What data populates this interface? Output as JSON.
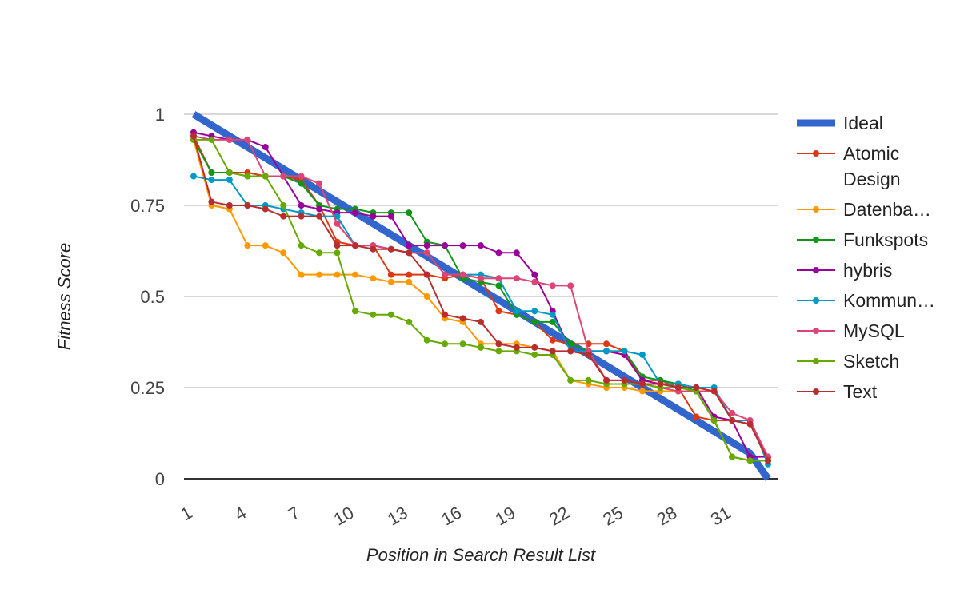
{
  "chart_data": {
    "type": "line",
    "title": "",
    "xlabel": "Position in Search Result List",
    "ylabel": "Fitness Score",
    "x": [
      1,
      2,
      3,
      4,
      5,
      6,
      7,
      8,
      9,
      10,
      11,
      12,
      13,
      14,
      15,
      16,
      17,
      18,
      19,
      20,
      21,
      22,
      23,
      24,
      25,
      26,
      27,
      28,
      29,
      30,
      31,
      32,
      33
    ],
    "xticks": [
      1,
      4,
      7,
      10,
      13,
      16,
      19,
      22,
      25,
      28,
      31
    ],
    "xlim": [
      0.5,
      33.5
    ],
    "ylim": [
      0,
      1
    ],
    "yticks": [
      0,
      0.25,
      0.5,
      0.75,
      1
    ],
    "ytick_labels": [
      "0",
      "0.25",
      "0.5",
      "0.75",
      "1"
    ],
    "grid": true,
    "legend": "right",
    "series": [
      {
        "name": "Ideal",
        "color": "#3366cc",
        "style": "thick-line",
        "values": [
          1,
          0.97,
          0.94,
          0.91,
          0.88,
          0.85,
          0.82,
          0.79,
          0.76,
          0.73,
          0.7,
          0.67,
          0.64,
          0.61,
          0.58,
          0.55,
          0.52,
          0.49,
          0.46,
          0.43,
          0.4,
          0.37,
          0.34,
          0.31,
          0.28,
          0.25,
          0.22,
          0.19,
          0.16,
          0.13,
          0.1,
          0.07,
          0
        ]
      },
      {
        "name": "Atomic Design",
        "legend_lines": [
          "Atomic",
          "Design"
        ],
        "color": "#dc3912",
        "values": [
          0.94,
          0.84,
          0.84,
          0.84,
          0.83,
          0.83,
          0.82,
          0.75,
          0.65,
          0.64,
          0.64,
          0.56,
          0.56,
          0.56,
          0.55,
          0.56,
          0.55,
          0.46,
          0.45,
          0.43,
          0.38,
          0.37,
          0.37,
          0.37,
          0.35,
          0.27,
          0.27,
          0.25,
          0.17,
          0.16,
          0.16,
          0.15,
          0.06
        ]
      },
      {
        "name": "Datenba…",
        "color": "#ff9900",
        "values": [
          0.93,
          0.75,
          0.74,
          0.64,
          0.64,
          0.62,
          0.56,
          0.56,
          0.56,
          0.56,
          0.55,
          0.54,
          0.54,
          0.5,
          0.44,
          0.43,
          0.37,
          0.37,
          0.37,
          0.36,
          0.35,
          0.27,
          0.26,
          0.25,
          0.25,
          0.24,
          0.24,
          0.24,
          0.24,
          0.16,
          0.06,
          0.05,
          0.05
        ]
      },
      {
        "name": "Funkspots",
        "color": "#109618",
        "values": [
          0.93,
          0.84,
          0.84,
          0.83,
          0.83,
          0.83,
          0.81,
          0.75,
          0.74,
          0.74,
          0.73,
          0.73,
          0.73,
          0.65,
          0.64,
          0.55,
          0.54,
          0.53,
          0.45,
          0.43,
          0.43,
          0.37,
          0.35,
          0.35,
          0.35,
          0.28,
          0.27,
          0.26,
          0.24,
          0.16,
          0.06,
          0.05,
          0.05
        ]
      },
      {
        "name": "hybris",
        "color": "#990099",
        "values": [
          0.95,
          0.94,
          0.93,
          0.93,
          0.91,
          0.83,
          0.75,
          0.74,
          0.73,
          0.73,
          0.72,
          0.72,
          0.64,
          0.64,
          0.64,
          0.64,
          0.64,
          0.62,
          0.62,
          0.56,
          0.46,
          0.35,
          0.35,
          0.35,
          0.34,
          0.27,
          0.26,
          0.25,
          0.25,
          0.17,
          0.16,
          0.06,
          0.06
        ]
      },
      {
        "name": "Kommun…",
        "color": "#0099c6",
        "values": [
          0.83,
          0.82,
          0.82,
          0.75,
          0.75,
          0.74,
          0.73,
          0.72,
          0.72,
          0.64,
          0.64,
          0.63,
          0.62,
          0.62,
          0.56,
          0.56,
          0.56,
          0.55,
          0.46,
          0.46,
          0.45,
          0.35,
          0.35,
          0.35,
          0.35,
          0.34,
          0.26,
          0.26,
          0.25,
          0.25,
          0.16,
          0.16,
          0.04
        ]
      },
      {
        "name": "MySQL",
        "color": "#dd4477",
        "values": [
          0.94,
          0.93,
          0.93,
          0.93,
          0.83,
          0.83,
          0.83,
          0.81,
          0.7,
          0.64,
          0.64,
          0.63,
          0.62,
          0.62,
          0.56,
          0.56,
          0.55,
          0.55,
          0.55,
          0.54,
          0.53,
          0.53,
          0.35,
          0.27,
          0.27,
          0.26,
          0.25,
          0.24,
          0.24,
          0.24,
          0.18,
          0.16,
          0.06
        ]
      },
      {
        "name": "Sketch",
        "color": "#66aa00",
        "values": [
          0.93,
          0.93,
          0.84,
          0.83,
          0.83,
          0.75,
          0.64,
          0.62,
          0.62,
          0.46,
          0.45,
          0.45,
          0.43,
          0.38,
          0.37,
          0.37,
          0.36,
          0.35,
          0.35,
          0.34,
          0.34,
          0.27,
          0.27,
          0.26,
          0.26,
          0.26,
          0.25,
          0.25,
          0.24,
          0.16,
          0.06,
          0.05,
          0.05
        ]
      },
      {
        "name": "Text",
        "color": "#b82e2e",
        "values": [
          0.94,
          0.76,
          0.75,
          0.75,
          0.74,
          0.72,
          0.72,
          0.72,
          0.64,
          0.64,
          0.63,
          0.63,
          0.62,
          0.56,
          0.45,
          0.44,
          0.43,
          0.37,
          0.36,
          0.36,
          0.35,
          0.35,
          0.34,
          0.27,
          0.27,
          0.26,
          0.26,
          0.25,
          0.25,
          0.24,
          0.16,
          0.15,
          0.05
        ]
      }
    ]
  }
}
